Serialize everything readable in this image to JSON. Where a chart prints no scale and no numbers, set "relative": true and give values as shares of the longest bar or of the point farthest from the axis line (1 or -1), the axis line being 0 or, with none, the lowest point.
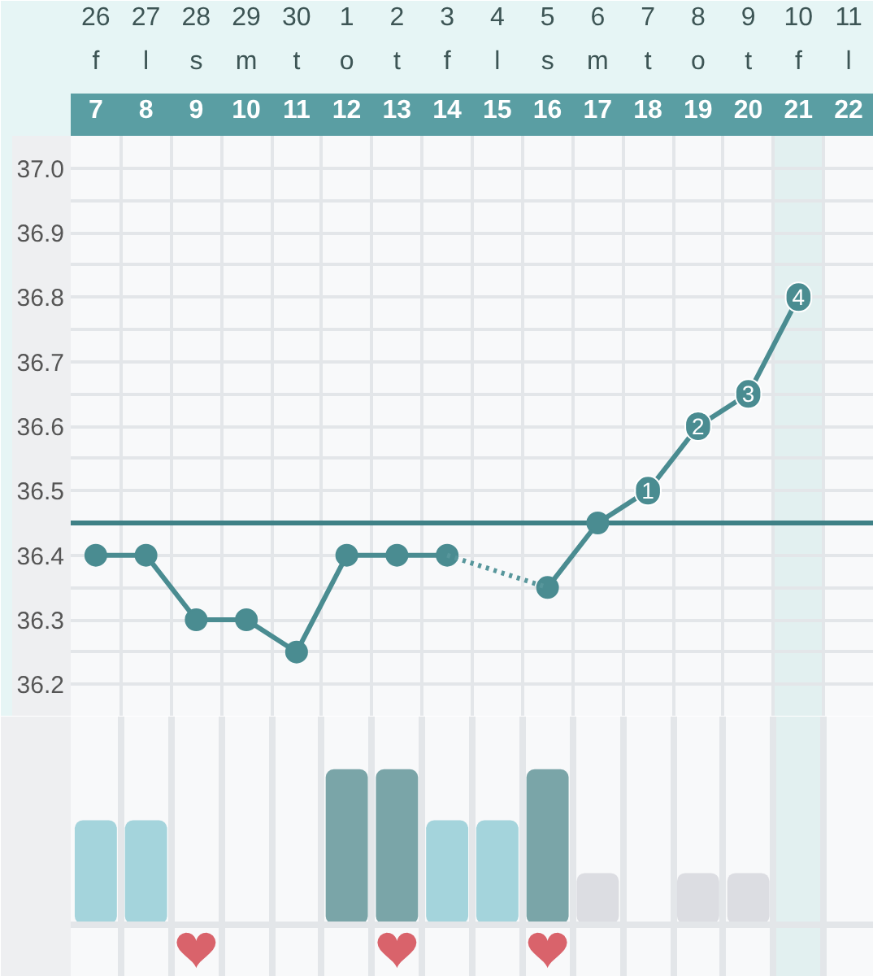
{
  "chart_data": [
    {
      "type": "line",
      "categories": [
        "26",
        "27",
        "28",
        "29",
        "30",
        "1",
        "2",
        "3",
        "4",
        "5",
        "6",
        "7",
        "8",
        "9",
        "10",
        "11"
      ],
      "series": [
        {
          "color": "#4a8c91",
          "values": [
            36.4,
            36.4,
            36.3,
            36.3,
            36.25,
            36.4,
            36.4,
            36.4,
            null,
            36.35,
            36.45,
            36.5,
            36.6,
            36.65,
            36.8,
            null
          ],
          "marker": "circle",
          "line_style": "solid"
        },
        {
          "type": "line",
          "x": [
            "3",
            "5"
          ],
          "color": "#57969b",
          "values": [
            36.4,
            36.35
          ],
          "line_style": "dotted"
        }
      ],
      "x2lim": [
        6.5,
        22.5
      ],
      "x2ticks": [
        7,
        8,
        9,
        10,
        11,
        12,
        13,
        14,
        15,
        16,
        17,
        18,
        19,
        20,
        21,
        22
      ],
      "ylim": [
        36.15,
        37.05
      ],
      "yticks": [
        36.2,
        {
          "value": 36.25,
          "label": null
        },
        36.3,
        {
          "value": 36.35,
          "label": null
        },
        36.4,
        {
          "value": 36.45,
          "label": null
        },
        36.5,
        {
          "value": 36.55,
          "label": null
        },
        36.6,
        {
          "value": 36.65,
          "label": null
        },
        36.7,
        {
          "value": 36.75,
          "label": null
        },
        36.8,
        {
          "value": 36.85,
          "label": null
        },
        36.9,
        {
          "value": 36.95,
          "label": null
        },
        {
          "value": 37,
          "label": "37.0"
        }
      ],
      "grid": true,
      "ref_lines": [
        {
          "axis": "y",
          "value": 36.45,
          "color": "#3f8186",
          "line_style": "solid"
        }
      ],
      "bands": [
        {
          "axis": "x2",
          "from": 20.5,
          "to": 21.5,
          "color": "#e2f0f0"
        }
      ],
      "annotations": [
        "f",
        "l",
        "s",
        "m",
        "t",
        "o",
        "t",
        "f",
        "l",
        "s",
        "m",
        "t",
        "o",
        "t",
        "f",
        "l",
        {
          "text": "1",
          "x": "7",
          "y": 36.5
        },
        {
          "text": "2",
          "x": "8",
          "y": 36.6
        },
        {
          "text": "3",
          "x": "9",
          "y": 36.65
        },
        {
          "text": "4",
          "x": "10",
          "y": 36.8
        }
      ]
    },
    {
      "type": "bar",
      "categories": [
        "26",
        "27",
        "28",
        "29",
        "30",
        "1",
        "2",
        "3",
        "4",
        "5",
        "6",
        "7",
        "8",
        "9",
        "10",
        "11"
      ],
      "series": [
        {
          "values": [
            0.67,
            0.67,
            null,
            null,
            null,
            1,
            1,
            0.67,
            0.67,
            1,
            0.33,
            null,
            0.33,
            0.33,
            null,
            null
          ],
          "colors": [
            "#a4d4dc",
            "#a4d4dc",
            null,
            null,
            null,
            "#7aa5a8",
            "#7aa5a8",
            "#a4d4dc",
            "#a4d4dc",
            "#7aa5a8",
            "#dcdde2",
            null,
            "#dcdde2",
            "#dcdde2",
            null,
            null
          ]
        },
        {
          "type": "scatter",
          "x": [
            "28",
            "2",
            "5"
          ],
          "values": [
            -0.17,
            -0.17,
            -0.17
          ],
          "color": "#d9636b"
        }
      ],
      "relative": true,
      "tick_labels": false,
      "grid": "x",
      "bands": [
        {
          "axis": "x",
          "from": "10",
          "to": "10",
          "color": "#e2f0f0"
        }
      ]
    }
  ]
}
